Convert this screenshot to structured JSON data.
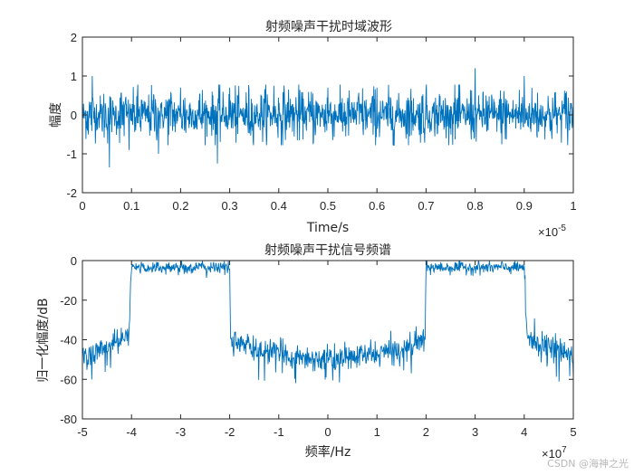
{
  "chart_data": [
    {
      "type": "line",
      "title": "射频噪声干扰时域波形",
      "xlabel": "Time/s",
      "ylabel": "幅度",
      "x_exponent_base": "×10",
      "x_exponent_power": "-5",
      "xlim": [
        0,
        1
      ],
      "ylim": [
        -2,
        2
      ],
      "x_ticks": [
        0,
        0.1,
        0.2,
        0.3,
        0.4,
        0.5,
        0.6,
        0.7,
        0.8,
        0.9,
        1
      ],
      "y_ticks": [
        -2,
        -1,
        0,
        1,
        2
      ],
      "x_tick_labels": [
        "0",
        "0.1",
        "0.2",
        "0.3",
        "0.4",
        "0.5",
        "0.6",
        "0.7",
        "0.8",
        "0.9",
        "1"
      ],
      "y_tick_labels": [
        "-2",
        "-1",
        "0",
        "1",
        "2"
      ],
      "grid": false,
      "color": "#0072BD",
      "series": [
        {
          "x": [
            0.02,
            0.055,
            0.095,
            0.155,
            0.2,
            0.275,
            0.3,
            0.39,
            0.42,
            0.5,
            0.6,
            0.7,
            0.8,
            0.9
          ],
          "y": [
            1.0,
            1.42,
            0.9,
            0.95,
            0.7,
            0.75,
            0.7,
            0.75,
            0.65,
            0.7,
            0.7,
            0.65,
            1.2,
            1.0
          ],
          "y_min": [
            -0.8,
            -1.35,
            -0.9,
            -1.0,
            -0.75,
            -1.25,
            -0.75,
            -0.8,
            -0.75,
            -0.85,
            -0.8,
            -0.75,
            -0.85,
            -0.85
          ]
        }
      ]
    },
    {
      "type": "line",
      "title": "射频噪声干扰信号频谱",
      "xlabel": "频率/Hz",
      "ylabel": "归一化幅度/dB",
      "x_exponent_base": "×10",
      "x_exponent_power": "7",
      "xlim": [
        -5,
        5
      ],
      "ylim": [
        -80,
        0
      ],
      "x_ticks": [
        -5,
        -4,
        -3,
        -2,
        -1,
        0,
        1,
        2,
        3,
        4,
        5
      ],
      "y_ticks": [
        -80,
        -60,
        -40,
        -20,
        0
      ],
      "x_tick_labels": [
        "-5",
        "-4",
        "-3",
        "-2",
        "-1",
        "0",
        "1",
        "2",
        "3",
        "4",
        "5"
      ],
      "y_tick_labels": [
        "-80",
        "-60",
        "-40",
        "-20",
        "0"
      ],
      "grid": false,
      "color": "#0072BD",
      "series": [
        {
          "x": [
            -5,
            -4.5,
            -4.05,
            -4,
            -3,
            -2,
            -1.98,
            -1.5,
            -1,
            -0.5,
            0,
            0.5,
            1,
            1.5,
            1.98,
            2,
            3,
            4,
            4.05,
            4.5,
            5
          ],
          "y": [
            -48,
            -44,
            -38,
            -3,
            -3,
            -3,
            -40,
            -45,
            -47,
            -49,
            -50,
            -49,
            -47,
            -45,
            -40,
            -3,
            -3,
            -3,
            -38,
            -44,
            -48
          ]
        }
      ]
    }
  ],
  "watermark": "CSDN @海神之光"
}
